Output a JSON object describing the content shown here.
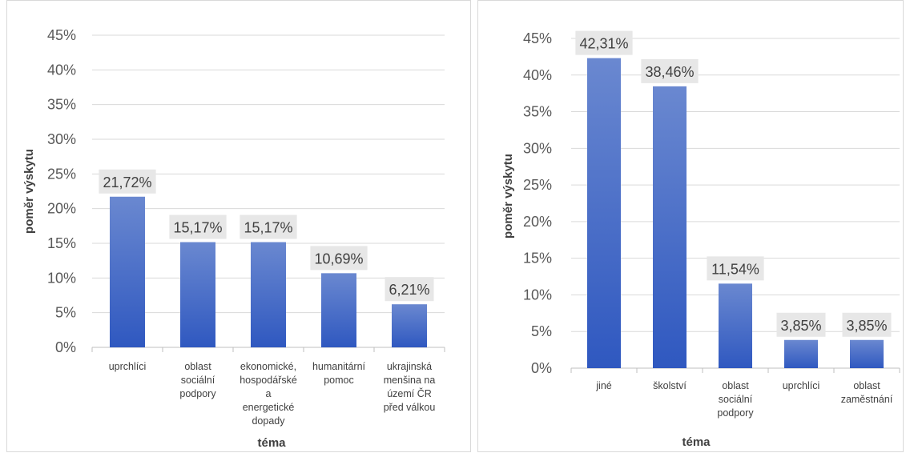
{
  "chart_data": [
    {
      "type": "bar",
      "xlabel": "téma",
      "ylabel": "poměr výskytu",
      "ylim": [
        0,
        45
      ],
      "yticks": [
        "0%",
        "5%",
        "10%",
        "15%",
        "20%",
        "25%",
        "30%",
        "35%",
        "40%",
        "45%"
      ],
      "categories": [
        [
          "uprchlíci"
        ],
        [
          "oblast",
          "sociální",
          "podpory"
        ],
        [
          "ekonomické,",
          "hospodářské",
          "a",
          "energetické",
          "dopady"
        ],
        [
          "humanitární",
          "pomoc"
        ],
        [
          "ukrajinská",
          "menšina na",
          "území ČR",
          "před válkou"
        ]
      ],
      "values": [
        21.72,
        15.17,
        15.17,
        10.69,
        6.21
      ],
      "labels": [
        "21,72%",
        "15,17%",
        "15,17%",
        "10,69%",
        "6,21%"
      ],
      "grid": true,
      "colors": {
        "bar_top": "#6a88d0",
        "bar_bottom": "#2f58c0",
        "label_bg": "#e7e7e7",
        "grid": "#d9d9d9"
      }
    },
    {
      "type": "bar",
      "xlabel": "téma",
      "ylabel": "poměr výskytu",
      "ylim": [
        0,
        45
      ],
      "yticks": [
        "0%",
        "5%",
        "10%",
        "15%",
        "20%",
        "25%",
        "30%",
        "35%",
        "40%",
        "45%"
      ],
      "categories": [
        [
          "jiné"
        ],
        [
          "školství"
        ],
        [
          "oblast",
          "sociální",
          "podpory"
        ],
        [
          "uprchlíci"
        ],
        [
          "oblast",
          "zaměstnání"
        ]
      ],
      "values": [
        42.31,
        38.46,
        11.54,
        3.85,
        3.85
      ],
      "labels": [
        "42,31%",
        "38,46%",
        "11,54%",
        "3,85%",
        "3,85%"
      ],
      "grid": true,
      "colors": {
        "bar_top": "#6a88d0",
        "bar_bottom": "#2f58c0",
        "label_bg": "#e7e7e7",
        "grid": "#d9d9d9"
      }
    }
  ]
}
